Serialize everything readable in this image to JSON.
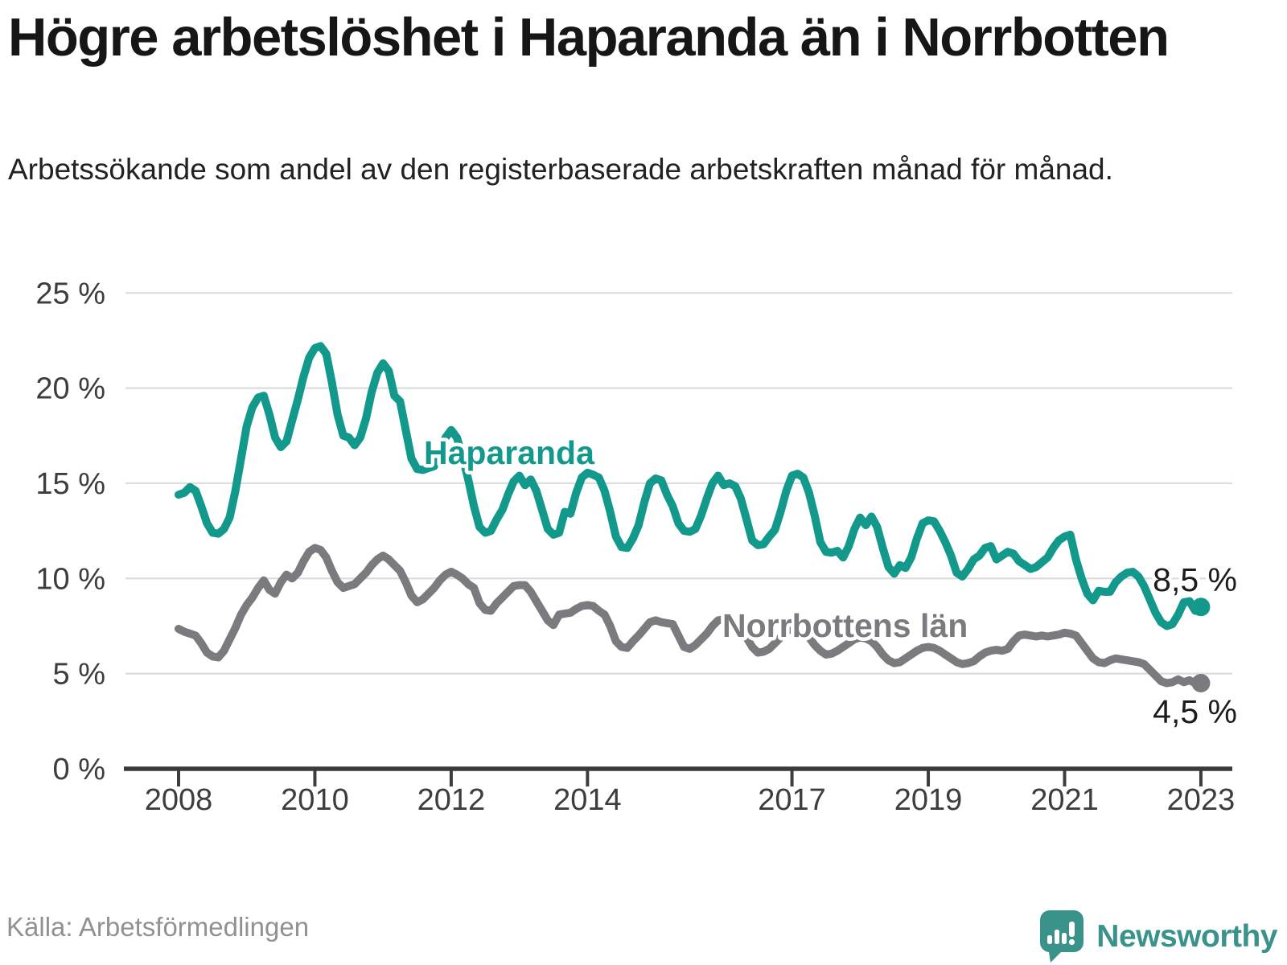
{
  "header": {
    "title": "Högre arbetslöshet i Haparanda än i Norrbotten",
    "subtitle": "Arbetssökande som andel av den registerbaserade arbetskraften månad för månad."
  },
  "footer": {
    "source": "Källa: Arbetsförmedlingen",
    "logo_brand": "Newsworthy",
    "logo_icon": "newsworthy-speech-bubble-bar-chart-icon"
  },
  "colors": {
    "haparanda": "#12998b",
    "norrbotten": "#7b7b7f",
    "axis_text": "#3d3d3d",
    "grid": "#dcdcdc",
    "axis_line": "#3a3a3a",
    "value_label": "#1c1c1c",
    "logo_teal": "#3a938a"
  },
  "chart_data": {
    "type": "line",
    "title": "Högre arbetslöshet i Haparanda än i Norrbotten",
    "subtitle": "Arbetssökande som andel av den registerbaserade arbetskraften månad för månad.",
    "grid": true,
    "legend_position": "inline-labels",
    "ylim": [
      0,
      25
    ],
    "y_tick_labels": [
      "0 %",
      "5 %",
      "10 %",
      "15 %",
      "20 %",
      "25 %"
    ],
    "x_ticks": [
      2008,
      2010,
      2012,
      2014,
      2017,
      2019,
      2021,
      2023
    ],
    "x_start_year": 2008,
    "frequency": "monthly",
    "x_end": "2023-01",
    "series": [
      {
        "name": "Haparanda",
        "end_label": "8,5 %",
        "last_value": 8.5,
        "values": [
          14.4,
          14.5,
          14.8,
          14.6,
          13.8,
          12.9,
          12.4,
          12.35,
          12.6,
          13.2,
          14.6,
          16.3,
          18.0,
          19.0,
          19.5,
          19.6,
          18.6,
          17.4,
          16.9,
          17.2,
          18.3,
          19.4,
          20.6,
          21.6,
          22.1,
          22.2,
          21.8,
          20.3,
          18.6,
          17.5,
          17.4,
          17.0,
          17.4,
          18.4,
          19.8,
          20.8,
          21.3,
          20.9,
          19.6,
          19.3,
          17.8,
          16.3,
          15.75,
          15.7,
          15.8,
          15.9,
          16.6,
          17.4,
          17.8,
          17.4,
          16.4,
          15.2,
          13.8,
          12.7,
          12.4,
          12.5,
          13.1,
          13.6,
          14.4,
          15.1,
          15.4,
          14.9,
          15.2,
          14.6,
          13.6,
          12.6,
          12.3,
          12.4,
          13.5,
          13.4,
          14.5,
          15.3,
          15.55,
          15.45,
          15.3,
          14.6,
          13.5,
          12.2,
          11.65,
          11.6,
          12.1,
          12.8,
          14.0,
          15.0,
          15.25,
          15.15,
          14.4,
          13.8,
          12.9,
          12.5,
          12.45,
          12.6,
          13.3,
          14.2,
          15.0,
          15.4,
          14.9,
          15.0,
          14.85,
          14.2,
          13.1,
          12.0,
          11.75,
          11.8,
          12.2,
          12.55,
          13.5,
          14.6,
          15.4,
          15.5,
          15.3,
          14.5,
          13.3,
          11.9,
          11.4,
          11.35,
          11.45,
          11.1,
          11.7,
          12.6,
          13.2,
          12.8,
          13.25,
          12.7,
          11.6,
          10.6,
          10.25,
          10.7,
          10.55,
          11.1,
          12.1,
          12.9,
          13.05,
          13.0,
          12.5,
          11.9,
          11.2,
          10.3,
          10.1,
          10.5,
          11.0,
          11.2,
          11.6,
          11.7,
          11.0,
          11.2,
          11.4,
          11.3,
          10.9,
          10.7,
          10.5,
          10.6,
          10.85,
          11.1,
          11.6,
          12.0,
          12.2,
          12.3,
          11.0,
          10.0,
          9.2,
          8.85,
          9.35,
          9.3,
          9.3,
          9.8,
          10.1,
          10.3,
          10.35,
          10.1,
          9.6,
          8.9,
          8.2,
          7.7,
          7.5,
          7.6,
          8.1,
          8.75,
          8.8,
          8.3,
          8.5
        ]
      },
      {
        "name": "Norrbottens län",
        "end_label": "4,5 %",
        "last_value": 4.5,
        "values": [
          7.35,
          7.2,
          7.1,
          7.0,
          6.6,
          6.1,
          5.9,
          5.85,
          6.2,
          6.8,
          7.4,
          8.1,
          8.6,
          9.0,
          9.5,
          9.9,
          9.4,
          9.2,
          9.8,
          10.2,
          10.0,
          10.3,
          10.9,
          11.4,
          11.6,
          11.5,
          11.1,
          10.4,
          9.8,
          9.5,
          9.6,
          9.7,
          10.0,
          10.3,
          10.7,
          11.0,
          11.2,
          11.0,
          10.7,
          10.4,
          9.8,
          9.1,
          8.75,
          8.9,
          9.2,
          9.5,
          9.9,
          10.2,
          10.35,
          10.2,
          10.0,
          9.7,
          9.5,
          8.7,
          8.35,
          8.3,
          8.7,
          9.0,
          9.3,
          9.6,
          9.65,
          9.65,
          9.3,
          8.8,
          8.3,
          7.8,
          7.55,
          8.1,
          8.15,
          8.2,
          8.4,
          8.55,
          8.6,
          8.55,
          8.3,
          8.1,
          7.5,
          6.7,
          6.4,
          6.35,
          6.7,
          7.0,
          7.35,
          7.7,
          7.8,
          7.7,
          7.65,
          7.6,
          7.0,
          6.4,
          6.3,
          6.5,
          6.8,
          7.1,
          7.5,
          7.8,
          7.85,
          7.8,
          7.6,
          7.3,
          6.9,
          6.4,
          6.1,
          6.15,
          6.3,
          6.6,
          6.9,
          7.2,
          7.4,
          7.35,
          7.2,
          6.9,
          6.5,
          6.2,
          6.0,
          6.05,
          6.2,
          6.4,
          6.6,
          6.8,
          6.9,
          6.85,
          6.7,
          6.4,
          6.0,
          5.7,
          5.55,
          5.6,
          5.8,
          6.0,
          6.2,
          6.35,
          6.4,
          6.35,
          6.2,
          6.0,
          5.8,
          5.6,
          5.5,
          5.55,
          5.65,
          5.9,
          6.1,
          6.2,
          6.25,
          6.2,
          6.3,
          6.7,
          7.0,
          7.05,
          7.0,
          6.95,
          7.0,
          6.95,
          7.0,
          7.05,
          7.15,
          7.1,
          7.0,
          6.6,
          6.2,
          5.8,
          5.6,
          5.55,
          5.7,
          5.8,
          5.75,
          5.7,
          5.65,
          5.6,
          5.5,
          5.2,
          4.9,
          4.6,
          4.5,
          4.55,
          4.7,
          4.55,
          4.65,
          4.5,
          4.5
        ]
      }
    ]
  }
}
